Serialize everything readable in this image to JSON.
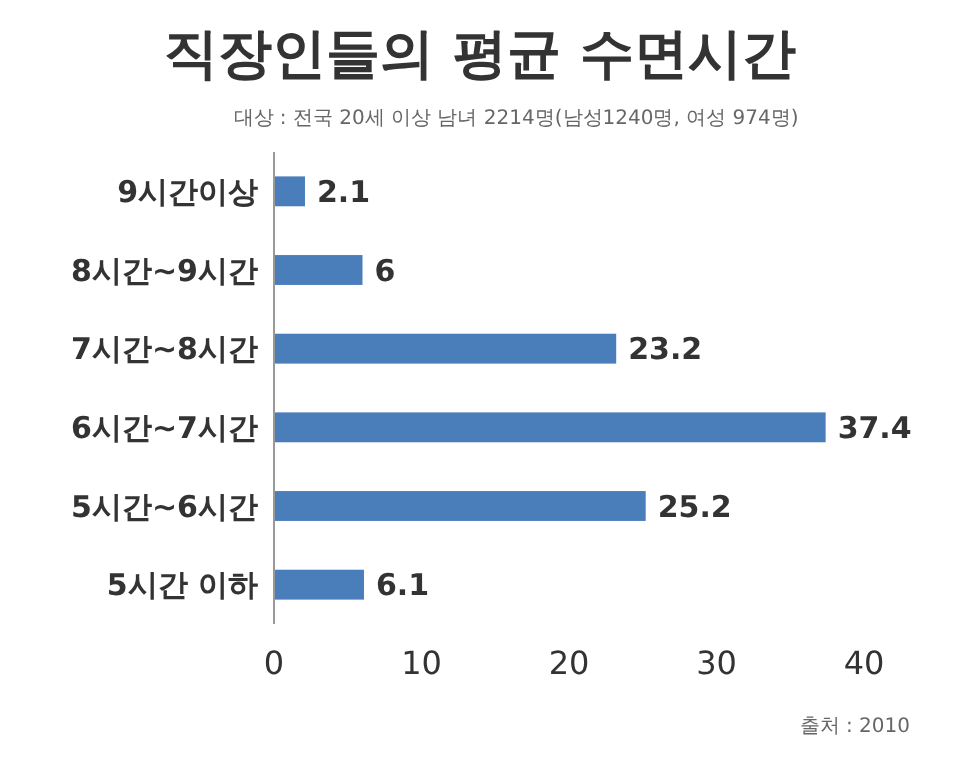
{
  "chart_data": {
    "type": "bar",
    "orientation": "horizontal",
    "title": "직장인들의 평균 수면시간",
    "subtitle": "대상 : 전국 20세 이상 남녀 2214명(남성1240명, 여성 974명)",
    "categories": [
      "9시간이상",
      "8시간~9시간",
      "7시간~8시간",
      "6시간~7시간",
      "5시간~6시간",
      "5시간 이하"
    ],
    "values": [
      2.1,
      6,
      23.2,
      37.4,
      25.2,
      6.1
    ],
    "color": "#4a7ebb",
    "data_labels": true,
    "xlim": [
      0,
      40
    ],
    "xticks": [
      0,
      10,
      20,
      30,
      40
    ],
    "grid": false,
    "annotations": [
      "출처 : 2010"
    ]
  }
}
